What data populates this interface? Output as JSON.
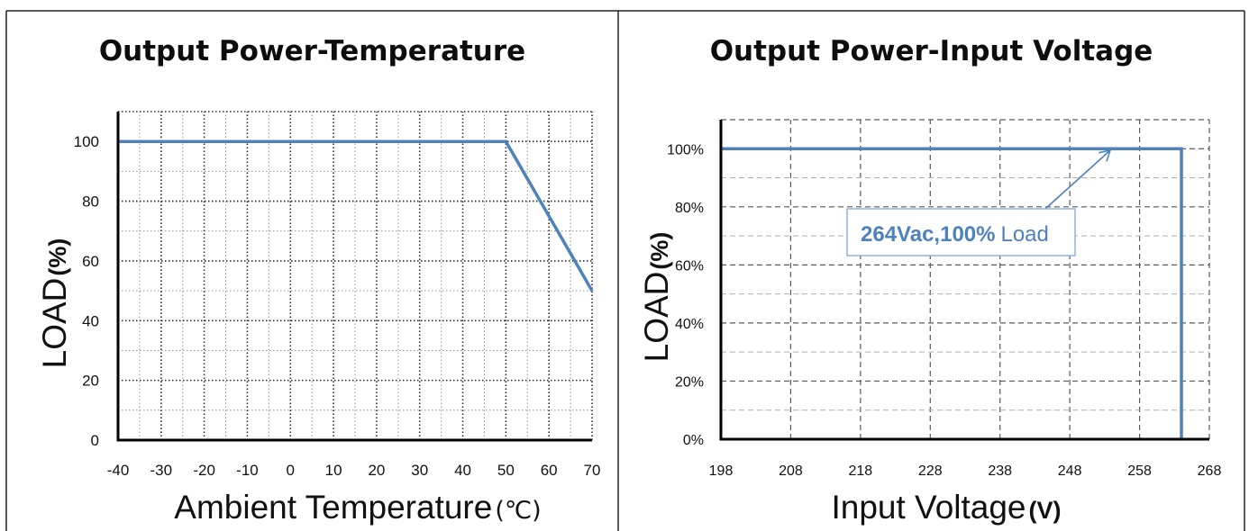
{
  "chart_data": [
    {
      "type": "line",
      "title": "Output Power-Temperature",
      "xlabel": "Ambient Temperature",
      "xlabel_unit": "(℃)",
      "ylabel": "LOAD",
      "ylabel_unit": "(%)",
      "xlim": [
        -40,
        70
      ],
      "ylim": [
        0,
        110
      ],
      "x_ticks": [
        -40,
        -30,
        -20,
        -10,
        0,
        10,
        20,
        30,
        40,
        50,
        60,
        70
      ],
      "y_ticks": [
        0,
        20,
        40,
        60,
        80,
        100
      ],
      "grid": true,
      "series": [
        {
          "x": [
            -40,
            50,
            70
          ],
          "y": [
            100,
            100,
            50
          ],
          "color": "#4f81bd"
        }
      ]
    },
    {
      "type": "line",
      "title": "Output Power-Input Voltage",
      "xlabel": "Input Voltage",
      "xlabel_unit": "(V)",
      "ylabel": "LOAD",
      "ylabel_unit": "(%)",
      "xlim": [
        198,
        268
      ],
      "ylim": [
        0,
        110
      ],
      "x_ticks": [
        198,
        208,
        218,
        228,
        238,
        248,
        258,
        268
      ],
      "y_ticks": [
        0,
        20,
        40,
        60,
        80,
        100
      ],
      "y_tick_labels": [
        "0%",
        "20%",
        "40%",
        "60%",
        "80%",
        "100%"
      ],
      "grid": true,
      "series": [
        {
          "x": [
            198,
            264,
            264
          ],
          "y": [
            100,
            100,
            0
          ],
          "color": "#4f81bd"
        }
      ],
      "annotation": {
        "label_bold": "264Vac,100%",
        "label": "Load",
        "color": "#4f81bd"
      }
    }
  ]
}
